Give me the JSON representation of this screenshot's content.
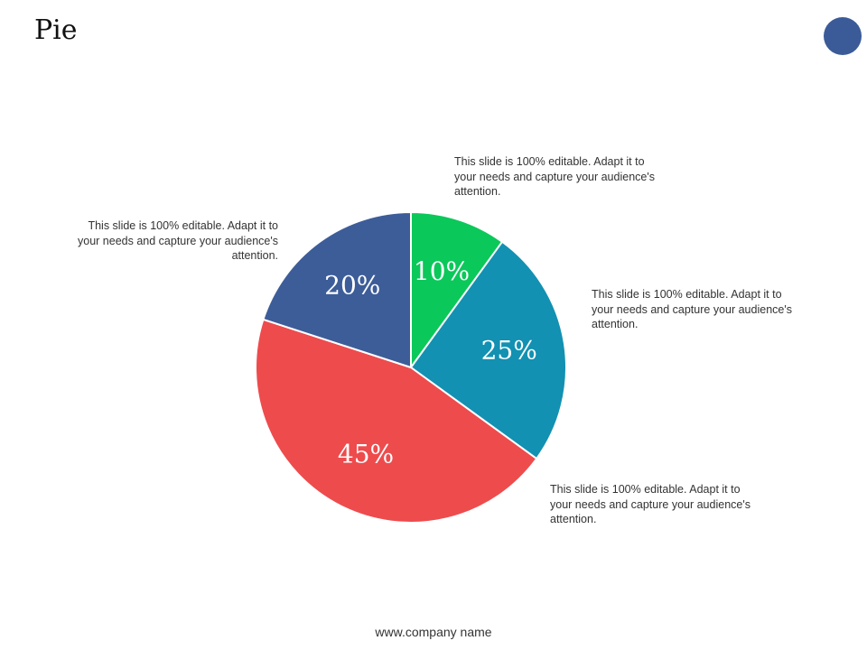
{
  "slide": {
    "title": "Pie",
    "footer": "www.company name",
    "accent_dot_color": "#3b5b98"
  },
  "chart_data": {
    "type": "pie",
    "title": "",
    "slices": [
      {
        "label": "10%",
        "value": 10,
        "color": "#0bc85a"
      },
      {
        "label": "25%",
        "value": 25,
        "color": "#1291b2"
      },
      {
        "label": "45%",
        "value": 45,
        "color": "#ee4b4d"
      },
      {
        "label": "20%",
        "value": 20,
        "color": "#3d5d99"
      }
    ],
    "start_angle_deg": 0,
    "direction": "clockwise"
  },
  "notes": [
    {
      "text": "This slide is 100% editable. Adapt it to your needs and capture your audience's attention."
    },
    {
      "text": "This slide is 100% editable. Adapt it to your needs and capture your audience's attention."
    },
    {
      "text": "This slide is 100% editable. Adapt it to your needs and capture your audience's attention."
    },
    {
      "text": "This slide is 100% editable. Adapt it to your needs and capture your audience's attention."
    }
  ]
}
